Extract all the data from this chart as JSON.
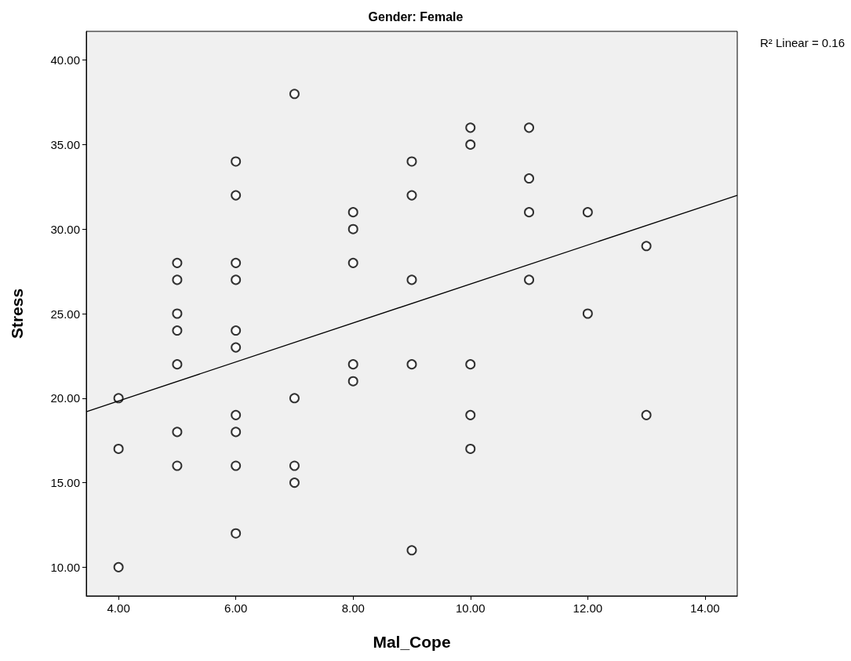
{
  "chart_data": {
    "type": "scatter",
    "title": "Gender: Female",
    "xlabel": "Mal_Cope",
    "ylabel": "Stress",
    "annotations": [
      "R² Linear = 0.16"
    ],
    "xlim": [
      3.45,
      14.55
    ],
    "xticks": [
      {
        "value": 4,
        "label": "4.00"
      },
      {
        "value": 6,
        "label": "6.00"
      },
      {
        "value": 8,
        "label": "8.00"
      },
      {
        "value": 10,
        "label": "10.00"
      },
      {
        "value": 12,
        "label": "12.00"
      },
      {
        "value": 14,
        "label": "14.00"
      }
    ],
    "ylim": [
      8.3,
      41.7
    ],
    "yticks": [
      {
        "value": 10,
        "label": "10.00"
      },
      {
        "value": 15,
        "label": "15.00"
      },
      {
        "value": 20,
        "label": "20.00"
      },
      {
        "value": 25,
        "label": "25.00"
      },
      {
        "value": 30,
        "label": "30.00"
      },
      {
        "value": 35,
        "label": "35.00"
      },
      {
        "value": 40,
        "label": "40.00"
      }
    ],
    "grid": false,
    "series": [
      {
        "color": "#000000",
        "marker": "circle",
        "x": [
          4,
          4,
          4,
          5,
          5,
          5,
          5,
          5,
          5,
          5,
          6,
          6,
          6,
          6,
          6,
          6,
          6,
          6,
          6,
          6,
          7,
          7,
          7,
          7,
          8,
          8,
          8,
          8,
          8,
          9,
          9,
          9,
          9,
          9,
          10,
          10,
          10,
          10,
          10,
          11,
          11,
          11,
          11,
          12,
          12,
          13,
          13
        ],
        "values": [
          20,
          17,
          10,
          28,
          27,
          25,
          24,
          22,
          18,
          16,
          34,
          32,
          28,
          27,
          24,
          23,
          19,
          18,
          16,
          12,
          38,
          20,
          16,
          15,
          31,
          30,
          28,
          22,
          21,
          34,
          32,
          27,
          22,
          11,
          36,
          35,
          22,
          19,
          17,
          36,
          33,
          31,
          27,
          31,
          25,
          29,
          19
        ]
      },
      {
        "type": "line",
        "color": "#000000",
        "marker": "none",
        "line_style": "solid",
        "x": [
          3.45,
          14.55
        ],
        "values": [
          19.2,
          32.0
        ]
      }
    ]
  }
}
